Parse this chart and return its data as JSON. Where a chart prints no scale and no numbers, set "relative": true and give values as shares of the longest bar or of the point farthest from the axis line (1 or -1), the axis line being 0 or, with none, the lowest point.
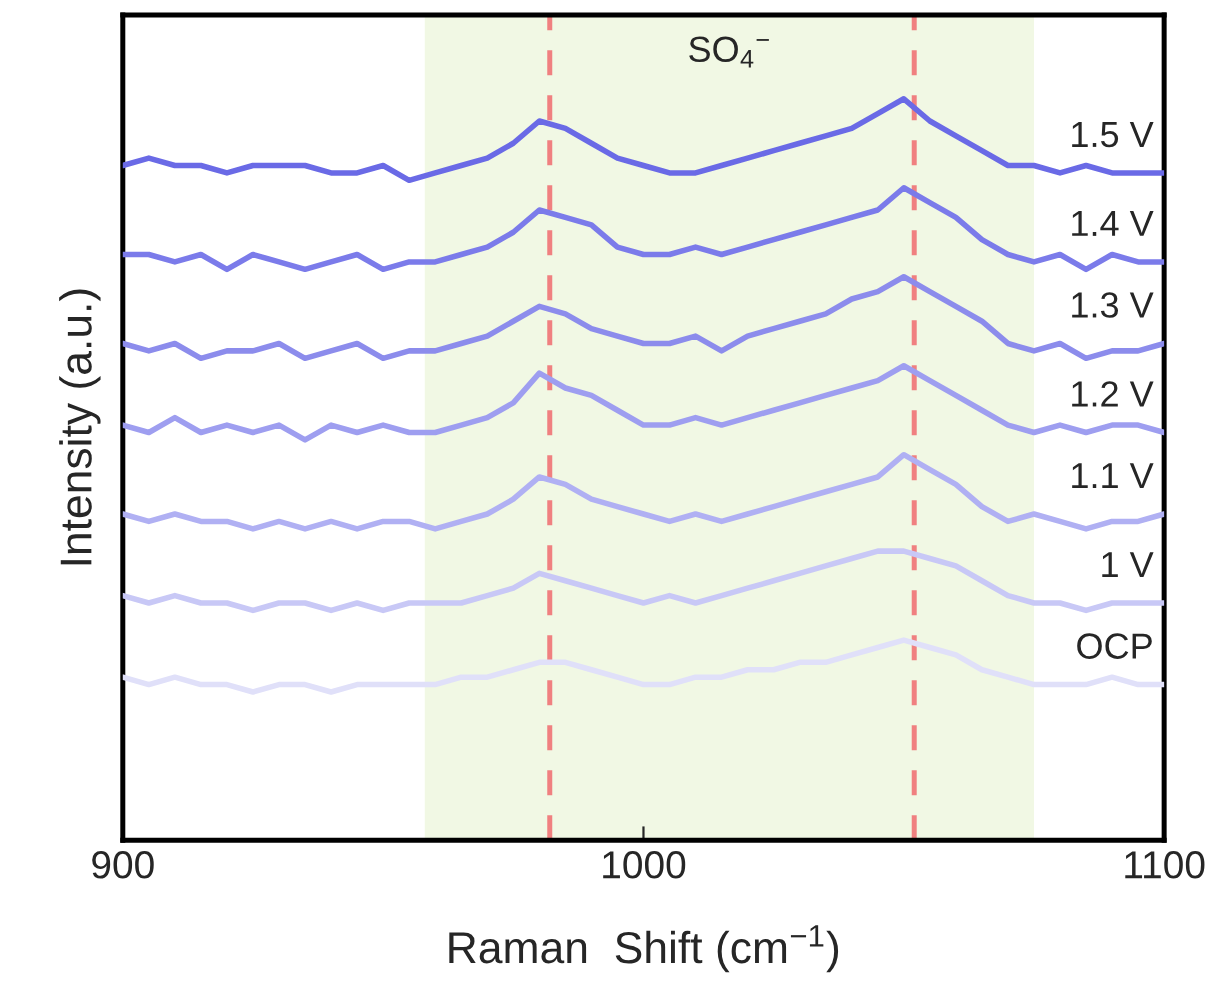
{
  "chart_data": {
    "type": "line",
    "relative": true,
    "xlabel": "Raman  Shift (cm$^{−1}$)",
    "ylabel": "Intensity (a.u.)",
    "x": [
      900,
      905,
      910,
      915,
      920,
      925,
      930,
      935,
      940,
      945,
      950,
      955,
      960,
      965,
      970,
      975,
      980,
      985,
      990,
      995,
      1000,
      1005,
      1010,
      1015,
      1020,
      1025,
      1030,
      1035,
      1040,
      1045,
      1050,
      1055,
      1060,
      1065,
      1070,
      1075,
      1080,
      1085,
      1090,
      1095,
      1100
    ],
    "xlim": [
      900,
      1100
    ],
    "xticks": [
      900,
      1000,
      1100
    ],
    "tick_labels": "x",
    "grid": false,
    "legend": false,
    "line_style": "solid",
    "marker": "none",
    "bands": [
      {
        "axis": "x",
        "from": 958,
        "to": 1075,
        "label": "SO$_{4}$$^{−}$",
        "color": "#f1f8e4"
      }
    ],
    "ref_lines": [
      {
        "axis": "x",
        "value": 982,
        "color": "#f08080",
        "line_style": "dashed"
      },
      {
        "axis": "x",
        "value": 1052,
        "color": "#f08080",
        "line_style": "dashed"
      }
    ],
    "series": [
      {
        "name": "1.5 V",
        "color": "#6a6ae6",
        "values": [
          0.91,
          0.92,
          0.91,
          0.91,
          0.9,
          0.91,
          0.91,
          0.91,
          0.9,
          0.9,
          0.91,
          0.89,
          0.9,
          0.91,
          0.92,
          0.94,
          0.97,
          0.96,
          0.94,
          0.92,
          0.91,
          0.9,
          0.9,
          0.91,
          0.92,
          0.93,
          0.94,
          0.95,
          0.96,
          0.98,
          1.0,
          0.97,
          0.95,
          0.93,
          0.91,
          0.91,
          0.9,
          0.91,
          0.9,
          0.9,
          0.9
        ]
      },
      {
        "name": "1.4 V",
        "color": "#7b7bea",
        "values": [
          0.79,
          0.79,
          0.78,
          0.79,
          0.77,
          0.79,
          0.78,
          0.77,
          0.78,
          0.79,
          0.77,
          0.78,
          0.78,
          0.79,
          0.8,
          0.82,
          0.85,
          0.84,
          0.83,
          0.8,
          0.79,
          0.79,
          0.8,
          0.79,
          0.8,
          0.81,
          0.82,
          0.83,
          0.84,
          0.85,
          0.88,
          0.86,
          0.84,
          0.81,
          0.79,
          0.78,
          0.79,
          0.77,
          0.79,
          0.78,
          0.78
        ]
      },
      {
        "name": "1.3 V",
        "color": "#8c8cec",
        "values": [
          0.67,
          0.66,
          0.67,
          0.65,
          0.66,
          0.66,
          0.67,
          0.65,
          0.66,
          0.67,
          0.65,
          0.66,
          0.66,
          0.67,
          0.68,
          0.7,
          0.72,
          0.71,
          0.69,
          0.68,
          0.67,
          0.67,
          0.68,
          0.66,
          0.68,
          0.69,
          0.7,
          0.71,
          0.73,
          0.74,
          0.76,
          0.74,
          0.72,
          0.7,
          0.67,
          0.66,
          0.67,
          0.65,
          0.66,
          0.66,
          0.67
        ]
      },
      {
        "name": "1.2 V",
        "color": "#9e9ef0",
        "values": [
          0.56,
          0.55,
          0.57,
          0.55,
          0.56,
          0.55,
          0.56,
          0.54,
          0.56,
          0.55,
          0.56,
          0.55,
          0.55,
          0.56,
          0.57,
          0.59,
          0.63,
          0.61,
          0.6,
          0.58,
          0.56,
          0.56,
          0.57,
          0.56,
          0.57,
          0.58,
          0.59,
          0.6,
          0.61,
          0.62,
          0.64,
          0.62,
          0.6,
          0.58,
          0.56,
          0.55,
          0.56,
          0.55,
          0.56,
          0.56,
          0.55
        ]
      },
      {
        "name": "1.1 V",
        "color": "#b0b0f3",
        "values": [
          0.44,
          0.43,
          0.44,
          0.43,
          0.43,
          0.42,
          0.43,
          0.42,
          0.43,
          0.42,
          0.43,
          0.43,
          0.42,
          0.43,
          0.44,
          0.46,
          0.49,
          0.48,
          0.46,
          0.45,
          0.44,
          0.43,
          0.44,
          0.43,
          0.44,
          0.45,
          0.46,
          0.47,
          0.48,
          0.49,
          0.52,
          0.5,
          0.48,
          0.45,
          0.43,
          0.44,
          0.43,
          0.42,
          0.43,
          0.43,
          0.44
        ]
      },
      {
        "name": "1 V",
        "color": "#c8c8f6",
        "values": [
          0.33,
          0.32,
          0.33,
          0.32,
          0.32,
          0.31,
          0.32,
          0.32,
          0.31,
          0.32,
          0.31,
          0.32,
          0.32,
          0.32,
          0.33,
          0.34,
          0.36,
          0.35,
          0.34,
          0.33,
          0.32,
          0.33,
          0.32,
          0.33,
          0.34,
          0.35,
          0.36,
          0.37,
          0.38,
          0.39,
          0.39,
          0.38,
          0.37,
          0.35,
          0.33,
          0.32,
          0.32,
          0.31,
          0.32,
          0.32,
          0.32
        ]
      },
      {
        "name": "OCP",
        "color": "#e0e0f9",
        "values": [
          0.22,
          0.21,
          0.22,
          0.21,
          0.21,
          0.2,
          0.21,
          0.21,
          0.2,
          0.21,
          0.21,
          0.21,
          0.21,
          0.22,
          0.22,
          0.23,
          0.24,
          0.24,
          0.23,
          0.22,
          0.21,
          0.21,
          0.22,
          0.22,
          0.23,
          0.23,
          0.24,
          0.24,
          0.25,
          0.26,
          0.27,
          0.26,
          0.25,
          0.23,
          0.22,
          0.21,
          0.21,
          0.21,
          0.22,
          0.21,
          0.21
        ]
      }
    ]
  }
}
